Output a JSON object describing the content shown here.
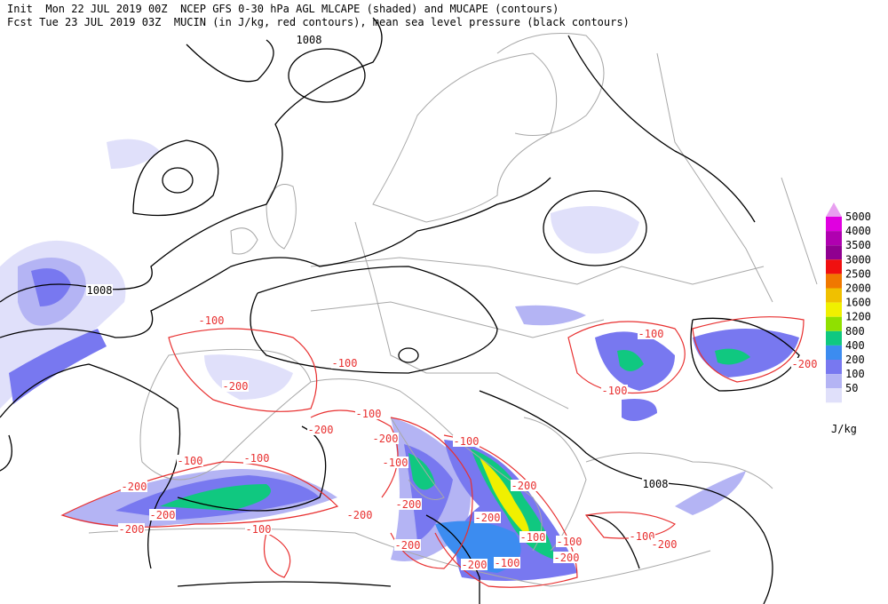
{
  "header": {
    "line1": "Init  Mon 22 JUL 2019 00Z  NCEP GFS 0-30 hPa AGL MLCAPE (shaded) and MUCAPE (contours)",
    "line2": "Fcst Tue 23 JUL 2019 03Z  MUCIN (in J/kg, red contours), mean sea level pressure (black contours)"
  },
  "colorbar": {
    "levels": [
      {
        "value": 5000,
        "color": "#e000e0"
      },
      {
        "value": 4000,
        "color": "#b000b0"
      },
      {
        "value": 3500,
        "color": "#900090"
      },
      {
        "value": 3000,
        "color": "#f01010"
      },
      {
        "value": 2500,
        "color": "#f07800"
      },
      {
        "value": 2000,
        "color": "#f0c000"
      },
      {
        "value": 1600,
        "color": "#f0f000"
      },
      {
        "value": 1200,
        "color": "#90e000"
      },
      {
        "value": 800,
        "color": "#10c880"
      },
      {
        "value": 400,
        "color": "#3c8cf0"
      },
      {
        "value": 200,
        "color": "#7878f0"
      },
      {
        "value": 100,
        "color": "#b4b4f4"
      },
      {
        "value": 50,
        "color": "#e0e0fa"
      }
    ],
    "top_color": "#e8a0f0",
    "unit": "J/kg"
  },
  "pressure_labels": [
    "1008",
    "1008",
    "1008"
  ],
  "cin_labels": [
    "-100",
    "-100",
    "-200",
    "-100",
    "-100",
    "-200",
    "-100",
    "-200",
    "-100",
    "-100",
    "-200",
    "-200",
    "-200",
    "-200",
    "-200",
    "-200",
    "-200",
    "-100",
    "-100",
    "-200",
    "-200",
    "-100",
    "-100",
    "-200",
    "-100",
    "-100",
    "-100",
    "-200",
    "-200"
  ]
}
